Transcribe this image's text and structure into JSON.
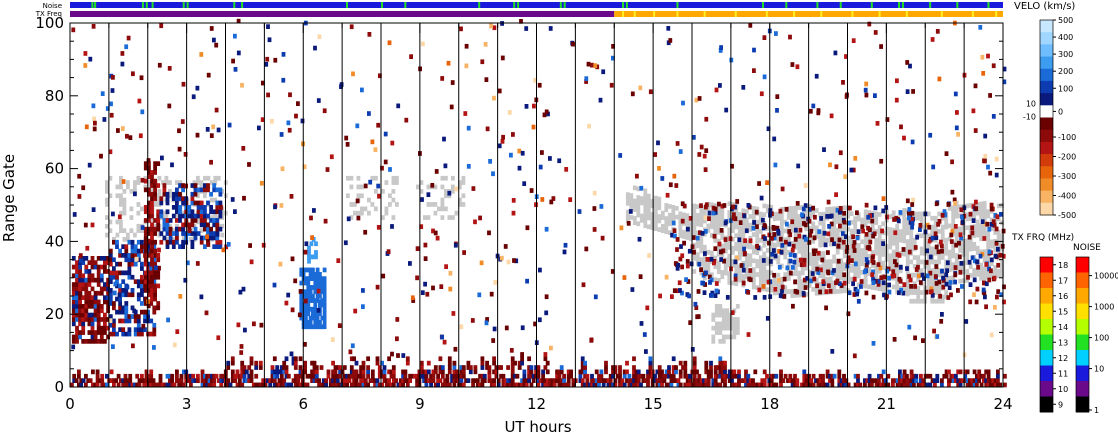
{
  "chart_data": {
    "type": "heatmap",
    "title": "",
    "xlabel": "UT hours",
    "ylabel": "Range Gate",
    "xlim": [
      0,
      24
    ],
    "ylim": [
      0,
      100
    ],
    "x_ticks": [
      0,
      3,
      6,
      9,
      12,
      15,
      18,
      21,
      24
    ],
    "y_ticks": [
      0,
      20,
      40,
      60,
      80,
      100
    ],
    "vertical_hour_lines": [
      1,
      2,
      3,
      4,
      5,
      6,
      7,
      8,
      9,
      10,
      11,
      12,
      13,
      14,
      15,
      16,
      17,
      18,
      19,
      20,
      21,
      22,
      23
    ],
    "top_strips": [
      {
        "label": "Noise",
        "segments": [
          {
            "from": 0,
            "to": 24,
            "color": "#1a1adc"
          }
        ],
        "ticks": {
          "color": "#22e022",
          "times": [
            0.55,
            0.62,
            1.85,
            1.95,
            2.1,
            2.9,
            3.0,
            4.2,
            4.4,
            7.1,
            8.0,
            8.6,
            10.5,
            11.4,
            11.5,
            12.6,
            12.7,
            14.2,
            14.3,
            15.6,
            17.8,
            18.4,
            19.2,
            19.8,
            20.6,
            21.3,
            21.4,
            22.1,
            22.8,
            23.6
          ]
        }
      },
      {
        "label": "TX Freq",
        "segments": [
          {
            "from": 0,
            "to": 14.0,
            "color": "#6a0a8a"
          },
          {
            "from": 14.0,
            "to": 24,
            "color": "#ffa800"
          }
        ],
        "ticks": {
          "color": "#ffee22",
          "times": [
            14.2,
            14.5,
            15.0,
            15.6,
            16.3,
            17.1,
            17.9,
            18.6,
            19.3,
            20.1,
            20.8,
            21.5,
            22.4,
            23.2,
            23.8
          ]
        }
      }
    ],
    "velocity_colorbar": {
      "label": "VELO (km/s)",
      "ticks": [
        "500",
        "400",
        "300",
        "200",
        "100",
        "0",
        "-100",
        "-200",
        "-300",
        "-400",
        "-500"
      ],
      "side_labels": [
        "10",
        "-10"
      ],
      "colors_top_to_bottom": [
        "#c8e8ff",
        "#a0d6ff",
        "#6ebeff",
        "#3c9cf0",
        "#1a6ad8",
        "#0c3cb0",
        "#0a1a7c",
        "#ffffff",
        "#6a0000",
        "#8c0a0a",
        "#b41414",
        "#d23c0a",
        "#e8640a",
        "#f08c28",
        "#f8b464",
        "#fcd8a8"
      ]
    },
    "txfreq_colorbar": {
      "label": "TX FRQ (MHz)",
      "ticks": [
        "18",
        "17",
        "16",
        "15",
        "14",
        "13",
        "12",
        "11",
        "10",
        "9"
      ],
      "colors_top_to_bottom": [
        "#ff0000",
        "#ff6400",
        "#ffa800",
        "#ffe000",
        "#b4ff00",
        "#22e022",
        "#00d0ff",
        "#1a1adc",
        "#6a0a8a",
        "#000000"
      ]
    },
    "noise_colorbar": {
      "label": "NOISE",
      "ticks": [
        "10000",
        "1000",
        "100",
        "10",
        "1"
      ],
      "colors_top_to_bottom": [
        "#ff0000",
        "#ff6400",
        "#ffa800",
        "#ffe000",
        "#b4ff00",
        "#22e022",
        "#00d0ff",
        "#1a1adc",
        "#6a0a8a",
        "#000000"
      ]
    },
    "scatter_regions": [
      {
        "name": "ground scatter",
        "color": "#c8c8c8",
        "x": [
          14.3,
          24
        ],
        "y": [
          22,
          50
        ],
        "note": "gray band"
      },
      {
        "name": "negative velocity",
        "color": "#8c0a0a",
        "x": [
          0,
          24
        ],
        "y": [
          0,
          8
        ]
      },
      {
        "name": "mixed velocity",
        "color": "#0a1a7c",
        "x": [
          0,
          4
        ],
        "y": [
          10,
          60
        ]
      },
      {
        "name": "positive velocity patch",
        "color": "#1a6ad8",
        "x": [
          5.9,
          6.5
        ],
        "y": [
          14,
          40
        ]
      }
    ]
  }
}
